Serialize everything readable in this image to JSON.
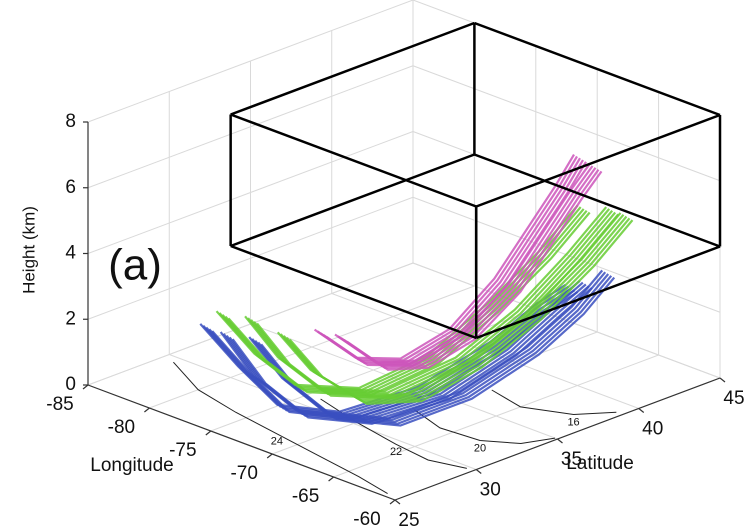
{
  "chart_data": {
    "type": "line3d",
    "panel_label": "(a)",
    "xlabel": "Longitude",
    "ylabel": "Latitude",
    "zlabel": "Height (km)",
    "xlim": [
      -85,
      -60
    ],
    "xticks": [
      -85,
      -80,
      -75,
      -70,
      -65,
      -60
    ],
    "ylim": [
      25,
      45
    ],
    "yticks": [
      25,
      30,
      35,
      40,
      45
    ],
    "zlim": [
      0,
      8
    ],
    "zticks": [
      0,
      2,
      4,
      6,
      8
    ],
    "grid": true,
    "box": {
      "x": [
        -80,
        -60
      ],
      "y": [
        30,
        45
      ],
      "z": [
        4,
        8
      ]
    },
    "contours": [
      {
        "level": 24,
        "x": [
          -84,
          -80,
          -76,
          -72,
          -68,
          -64,
          -61
        ],
        "y": [
          29.5,
          28,
          27.3,
          26.8,
          26.3,
          25.8,
          25.3
        ]
      },
      {
        "level": 22,
        "x": [
          -74,
          -70,
          -66,
          -63,
          -60.5
        ],
        "y": [
          31,
          30.2,
          29.6,
          29.3,
          29.8
        ]
      },
      {
        "level": 20,
        "x": [
          -69,
          -66,
          -63,
          -61,
          -60.2
        ],
        "y": [
          33,
          32.3,
          32.5,
          33.5,
          35
        ]
      },
      {
        "level": 16,
        "x": [
          -68,
          -65,
          -62,
          -60.5
        ],
        "y": [
          37,
          36.5,
          37.5,
          39
        ]
      }
    ],
    "series": [
      {
        "color": "#3a4fc0",
        "x": [
          -79,
          -75,
          -71,
          -67,
          -64,
          -62.5,
          -61.5,
          -61
        ],
        "y": [
          29,
          28,
          27.6,
          28.5,
          31,
          34,
          36,
          37.5
        ],
        "z": [
          1.6,
          1.0,
          0.6,
          0.8,
          1.5,
          2.5,
          3.5,
          4.1
        ]
      },
      {
        "color": "#3a4fc0",
        "x": [
          -78,
          -74,
          -70,
          -66,
          -63.5,
          -62,
          -61,
          -60.5
        ],
        "y": [
          30,
          29,
          28.6,
          29.5,
          32,
          35,
          37,
          38.5
        ],
        "z": [
          1.4,
          0.9,
          0.5,
          0.7,
          1.4,
          2.4,
          3.4,
          4.3
        ]
      },
      {
        "color": "#3a4fc0",
        "x": [
          -80,
          -76,
          -72,
          -68,
          -65,
          -63,
          -62,
          -61.5
        ],
        "y": [
          28.5,
          27.8,
          27.2,
          28,
          30.5,
          33.5,
          35.5,
          37
        ],
        "z": [
          1.8,
          1.2,
          0.7,
          0.9,
          1.6,
          2.7,
          3.6,
          4.0
        ]
      },
      {
        "color": "#66cc33",
        "x": [
          -79,
          -75,
          -71,
          -67,
          -64.5,
          -63,
          -62,
          -61.5
        ],
        "y": [
          30.5,
          29.5,
          29,
          30,
          32.5,
          35,
          37.5,
          39.5
        ],
        "z": [
          1.8,
          1.3,
          1.0,
          1.3,
          2.2,
          3.4,
          4.8,
          5.9
        ]
      },
      {
        "color": "#66cc33",
        "x": [
          -77,
          -73,
          -69,
          -66,
          -64,
          -62.5,
          -61.5,
          -61
        ],
        "y": [
          31,
          30,
          29.7,
          30.8,
          33,
          35.5,
          38,
          40
        ],
        "z": [
          1.5,
          1.1,
          0.9,
          1.2,
          2.1,
          3.3,
          4.6,
          5.7
        ]
      },
      {
        "color": "#66cc33",
        "x": [
          -80,
          -76,
          -72,
          -68,
          -65.5,
          -64,
          -63,
          -62.5
        ],
        "y": [
          29.5,
          28.8,
          28.3,
          29.2,
          31.5,
          34,
          36.5,
          38.5
        ],
        "z": [
          2.0,
          1.4,
          1.1,
          1.4,
          2.3,
          3.6,
          4.9,
          6.0
        ]
      },
      {
        "color": "#cc55bb",
        "x": [
          -74,
          -70,
          -67,
          -65,
          -64,
          -63.5,
          -63,
          -62.8
        ],
        "y": [
          31,
          30.5,
          31,
          32.5,
          34.5,
          36,
          37.5,
          38.5
        ],
        "z": [
          2.0,
          1.8,
          2.1,
          3.0,
          4.3,
          5.5,
          6.7,
          7.5
        ]
      },
      {
        "color": "#cc55bb",
        "x": [
          -73,
          -69,
          -66.5,
          -64.5,
          -63.5,
          -63,
          -62.5,
          -62.2
        ],
        "y": [
          31.5,
          31,
          31.6,
          33,
          35,
          36.5,
          38,
          39
        ],
        "z": [
          1.9,
          1.7,
          2.0,
          2.9,
          4.1,
          5.3,
          6.5,
          7.2
        ]
      }
    ]
  }
}
